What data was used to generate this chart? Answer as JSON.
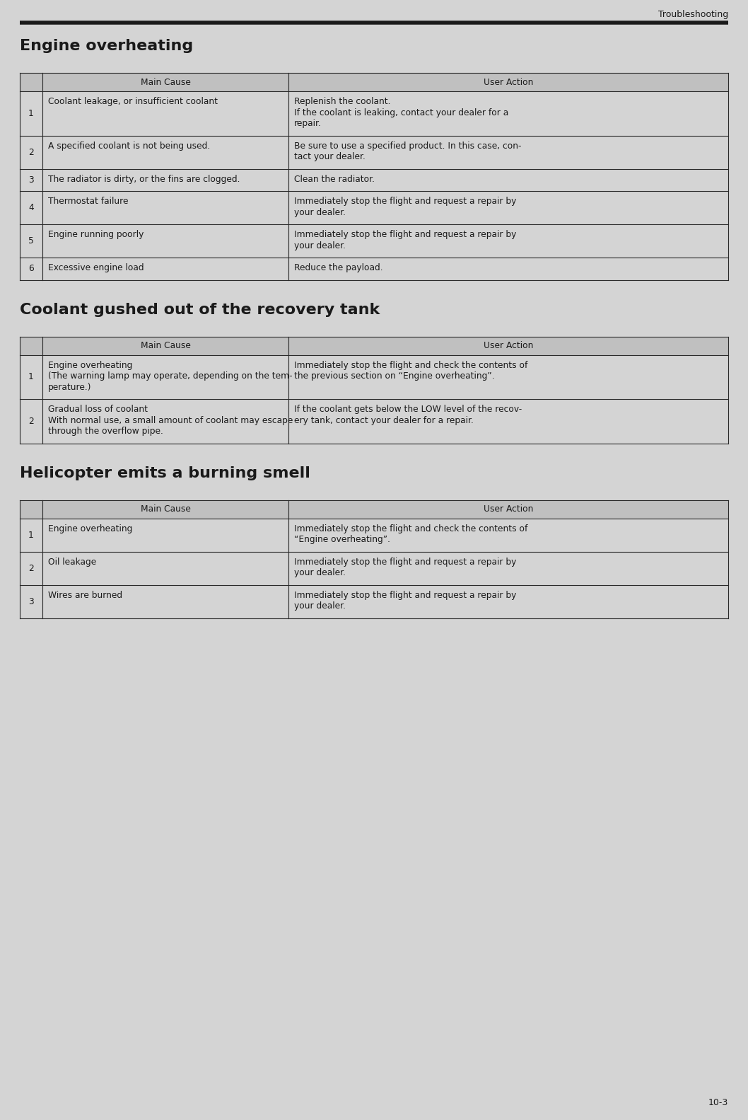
{
  "page_title": "Troubleshooting",
  "page_number": "10-3",
  "bg_color": "#d4d4d4",
  "table_bg": "#d4d4d4",
  "header_bg": "#c0c0c0",
  "line_color": "#2a2a2a",
  "text_color": "#1a1a1a",
  "header_label_cause": "Main Cause",
  "header_label_action": "User Action",
  "sections": [
    {
      "title": "Engine overheating",
      "rows": [
        {
          "num": "1",
          "cause": "Coolant leakage, or insufficient coolant",
          "cause_lines": 1,
          "action": "Replenish the coolant.\nIf the coolant is leaking, contact your dealer for a\nrepair.",
          "action_lines": 3
        },
        {
          "num": "2",
          "cause": "A specified coolant is not being used.",
          "cause_lines": 1,
          "action": "Be sure to use a specified product. In this case, con-\ntact your dealer.",
          "action_lines": 2
        },
        {
          "num": "3",
          "cause": "The radiator is dirty, or the fins are clogged.",
          "cause_lines": 1,
          "action": "Clean the radiator.",
          "action_lines": 1
        },
        {
          "num": "4",
          "cause": "Thermostat failure",
          "cause_lines": 1,
          "action": "Immediately stop the flight and request a repair by\nyour dealer.",
          "action_lines": 2
        },
        {
          "num": "5",
          "cause": "Engine running poorly",
          "cause_lines": 1,
          "action": "Immediately stop the flight and request a repair by\nyour dealer.",
          "action_lines": 2
        },
        {
          "num": "6",
          "cause": "Excessive engine load",
          "cause_lines": 1,
          "action": "Reduce the payload.",
          "action_lines": 1
        }
      ]
    },
    {
      "title": "Coolant gushed out of the recovery tank",
      "rows": [
        {
          "num": "1",
          "cause": "Engine overheating\n(The warning lamp may operate, depending on the tem-\nperature.)",
          "cause_lines": 3,
          "action": "Immediately stop the flight and check the contents of\nthe previous section on “Engine overheating”.",
          "action_lines": 2
        },
        {
          "num": "2",
          "cause": "Gradual loss of coolant\nWith normal use, a small amount of coolant may escape\nthrough the overflow pipe.",
          "cause_lines": 3,
          "action": "If the coolant gets below the LOW level of the recov-\nery tank, contact your dealer for a repair.",
          "action_lines": 2
        }
      ]
    },
    {
      "title": "Helicopter emits a burning smell",
      "rows": [
        {
          "num": "1",
          "cause": "Engine overheating",
          "cause_lines": 1,
          "action": "Immediately stop the flight and check the contents of\n“Engine overheating”.",
          "action_lines": 2
        },
        {
          "num": "2",
          "cause": "Oil leakage",
          "cause_lines": 1,
          "action": "Immediately stop the flight and request a repair by\nyour dealer.",
          "action_lines": 2
        },
        {
          "num": "3",
          "cause": "Wires are burned",
          "cause_lines": 1,
          "action": "Immediately stop the flight and request a repair by\nyour dealer.",
          "action_lines": 2
        }
      ]
    }
  ]
}
